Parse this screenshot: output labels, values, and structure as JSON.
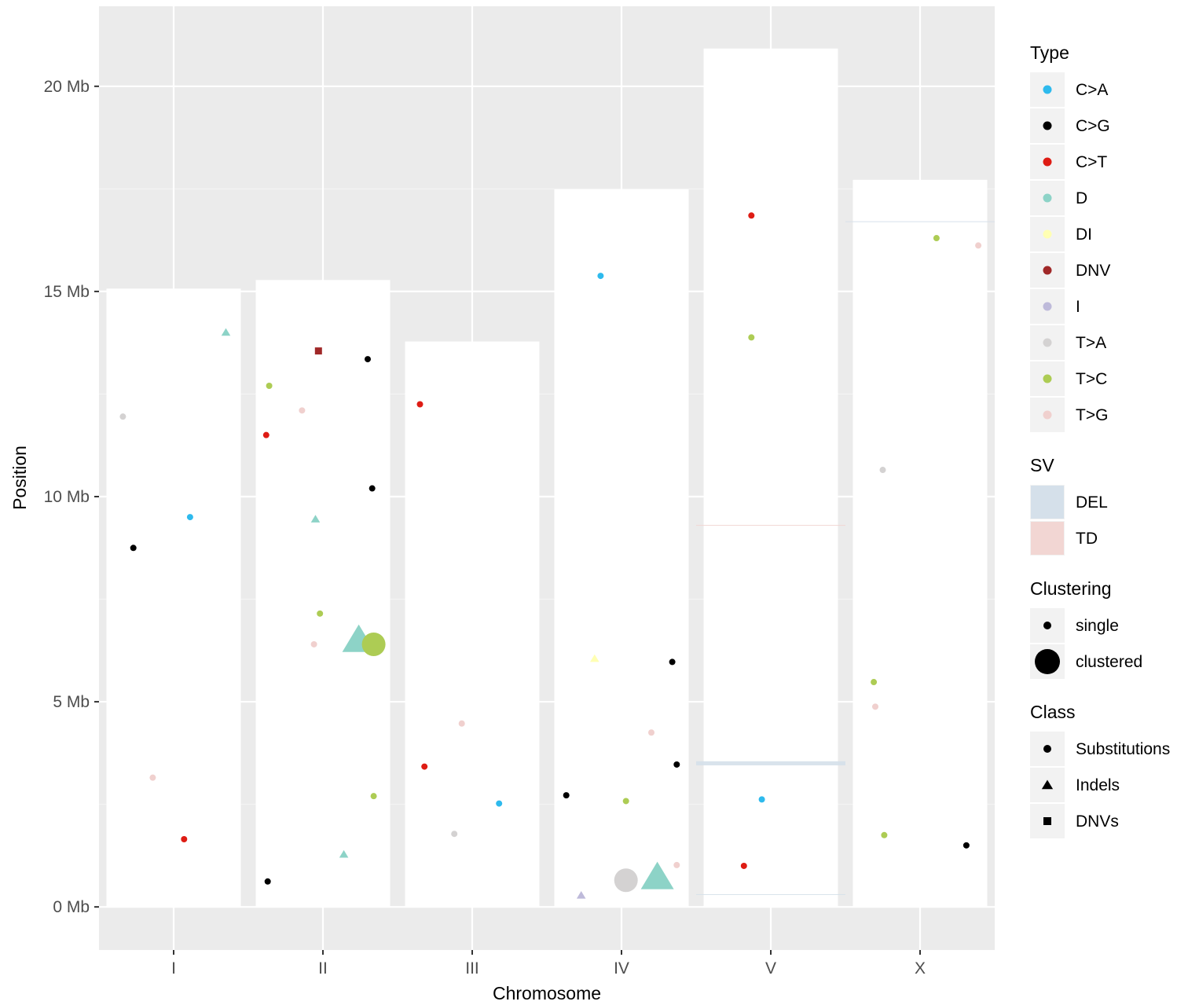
{
  "chart_data": {
    "type": "scatter",
    "xlabel": "Chromosome",
    "ylabel": "Position",
    "categories": [
      "I",
      "II",
      "III",
      "IV",
      "V",
      "X"
    ],
    "y_ticks": [
      {
        "value": 0,
        "label": "0 Mb"
      },
      {
        "value": 5,
        "label": "5 Mb"
      },
      {
        "value": 10,
        "label": "10 Mb"
      },
      {
        "value": 15,
        "label": "15 Mb"
      },
      {
        "value": 20,
        "label": "20 Mb"
      }
    ],
    "ylim": [
      -1.05,
      21.95
    ],
    "panel_background": "#ebebeb",
    "grid": true,
    "legend_placement": "right",
    "chromosome_lengths_mb": [
      {
        "chrom": "I",
        "length": 15.07
      },
      {
        "chrom": "II",
        "length": 15.28
      },
      {
        "chrom": "III",
        "length": 13.78
      },
      {
        "chrom": "IV",
        "length": 17.49
      },
      {
        "chrom": "V",
        "length": 20.92
      },
      {
        "chrom": "X",
        "length": 17.72
      }
    ],
    "sv_segments": [
      {
        "chrom": "V",
        "type": "DEL",
        "start_mb": 3.45,
        "end_mb": 3.55
      },
      {
        "chrom": "V",
        "type": "TD",
        "start_mb": 9.29,
        "end_mb": 9.31
      },
      {
        "chrom": "V",
        "type": "DEL",
        "start_mb": 0.3,
        "end_mb": 0.31
      },
      {
        "chrom": "X",
        "type": "DEL",
        "start_mb": 16.69,
        "end_mb": 16.71
      }
    ],
    "points": [
      {
        "chrom": "I",
        "offset": -0.34,
        "y": 11.95,
        "type": "T>A",
        "class": "Substitutions",
        "clustering": "single"
      },
      {
        "chrom": "I",
        "offset": -0.27,
        "y": 8.75,
        "type": "C>G",
        "class": "Substitutions",
        "clustering": "single"
      },
      {
        "chrom": "I",
        "offset": -0.14,
        "y": 3.15,
        "type": "T>G",
        "class": "Substitutions",
        "clustering": "single"
      },
      {
        "chrom": "I",
        "offset": 0.07,
        "y": 1.65,
        "type": "C>T",
        "class": "Substitutions",
        "clustering": "single"
      },
      {
        "chrom": "I",
        "offset": 0.11,
        "y": 9.5,
        "type": "C>A",
        "class": "Substitutions",
        "clustering": "single"
      },
      {
        "chrom": "I",
        "offset": 0.35,
        "y": 14.0,
        "type": "D",
        "class": "Indels",
        "clustering": "single"
      },
      {
        "chrom": "II",
        "offset": -0.38,
        "y": 11.5,
        "type": "C>T",
        "class": "Substitutions",
        "clustering": "single"
      },
      {
        "chrom": "II",
        "offset": -0.37,
        "y": 0.62,
        "type": "C>G",
        "class": "Substitutions",
        "clustering": "single"
      },
      {
        "chrom": "II",
        "offset": -0.36,
        "y": 12.7,
        "type": "T>C",
        "class": "Substitutions",
        "clustering": "single"
      },
      {
        "chrom": "II",
        "offset": -0.14,
        "y": 12.1,
        "type": "T>G",
        "class": "Substitutions",
        "clustering": "single"
      },
      {
        "chrom": "II",
        "offset": -0.06,
        "y": 6.4,
        "type": "T>G",
        "class": "Substitutions",
        "clustering": "single"
      },
      {
        "chrom": "II",
        "offset": -0.05,
        "y": 9.45,
        "type": "D",
        "class": "Indels",
        "clustering": "single"
      },
      {
        "chrom": "II",
        "offset": -0.03,
        "y": 13.55,
        "type": "DNV",
        "class": "DNVs",
        "clustering": "single"
      },
      {
        "chrom": "II",
        "offset": -0.02,
        "y": 7.15,
        "type": "T>C",
        "class": "Substitutions",
        "clustering": "single"
      },
      {
        "chrom": "II",
        "offset": 0.14,
        "y": 1.28,
        "type": "D",
        "class": "Indels",
        "clustering": "single"
      },
      {
        "chrom": "II",
        "offset": 0.24,
        "y": 6.5,
        "type": "D",
        "class": "Indels",
        "clustering": "clustered"
      },
      {
        "chrom": "II",
        "offset": 0.3,
        "y": 13.35,
        "type": "C>G",
        "class": "Substitutions",
        "clustering": "single"
      },
      {
        "chrom": "II",
        "offset": 0.33,
        "y": 10.2,
        "type": "C>G",
        "class": "Substitutions",
        "clustering": "single"
      },
      {
        "chrom": "II",
        "offset": 0.34,
        "y": 6.4,
        "type": "T>C",
        "class": "Substitutions",
        "clustering": "clustered"
      },
      {
        "chrom": "II",
        "offset": 0.34,
        "y": 2.7,
        "type": "T>C",
        "class": "Substitutions",
        "clustering": "single"
      },
      {
        "chrom": "III",
        "offset": -0.35,
        "y": 12.25,
        "type": "C>T",
        "class": "Substitutions",
        "clustering": "single"
      },
      {
        "chrom": "III",
        "offset": -0.32,
        "y": 3.42,
        "type": "C>T",
        "class": "Substitutions",
        "clustering": "single"
      },
      {
        "chrom": "III",
        "offset": -0.12,
        "y": 1.78,
        "type": "T>A",
        "class": "Substitutions",
        "clustering": "single"
      },
      {
        "chrom": "III",
        "offset": -0.07,
        "y": 4.47,
        "type": "T>G",
        "class": "Substitutions",
        "clustering": "single"
      },
      {
        "chrom": "III",
        "offset": 0.18,
        "y": 2.52,
        "type": "C>A",
        "class": "Substitutions",
        "clustering": "single"
      },
      {
        "chrom": "IV",
        "offset": -0.37,
        "y": 2.72,
        "type": "C>G",
        "class": "Substitutions",
        "clustering": "single"
      },
      {
        "chrom": "IV",
        "offset": -0.27,
        "y": 0.28,
        "type": "I",
        "class": "Indels",
        "clustering": "single"
      },
      {
        "chrom": "IV",
        "offset": -0.18,
        "y": 6.05,
        "type": "DI",
        "class": "Indels",
        "clustering": "single"
      },
      {
        "chrom": "IV",
        "offset": -0.14,
        "y": 15.38,
        "type": "C>A",
        "class": "Substitutions",
        "clustering": "single"
      },
      {
        "chrom": "IV",
        "offset": 0.03,
        "y": 0.65,
        "type": "T>A",
        "class": "Substitutions",
        "clustering": "clustered"
      },
      {
        "chrom": "IV",
        "offset": 0.03,
        "y": 2.58,
        "type": "T>C",
        "class": "Substitutions",
        "clustering": "single"
      },
      {
        "chrom": "IV",
        "offset": 0.2,
        "y": 4.25,
        "type": "T>G",
        "class": "Substitutions",
        "clustering": "single"
      },
      {
        "chrom": "IV",
        "offset": 0.24,
        "y": 0.72,
        "type": "D",
        "class": "Indels",
        "clustering": "clustered"
      },
      {
        "chrom": "IV",
        "offset": 0.34,
        "y": 5.97,
        "type": "C>G",
        "class": "Substitutions",
        "clustering": "single"
      },
      {
        "chrom": "IV",
        "offset": 0.37,
        "y": 1.02,
        "type": "T>G",
        "class": "Substitutions",
        "clustering": "single"
      },
      {
        "chrom": "IV",
        "offset": 0.37,
        "y": 3.47,
        "type": "C>G",
        "class": "Substitutions",
        "clustering": "single"
      },
      {
        "chrom": "V",
        "offset": -0.18,
        "y": 1.0,
        "type": "C>T",
        "class": "Substitutions",
        "clustering": "single"
      },
      {
        "chrom": "V",
        "offset": -0.13,
        "y": 16.85,
        "type": "C>T",
        "class": "Substitutions",
        "clustering": "single"
      },
      {
        "chrom": "V",
        "offset": -0.13,
        "y": 13.88,
        "type": "T>C",
        "class": "Substitutions",
        "clustering": "single"
      },
      {
        "chrom": "V",
        "offset": -0.06,
        "y": 2.62,
        "type": "C>A",
        "class": "Substitutions",
        "clustering": "single"
      },
      {
        "chrom": "X",
        "offset": -0.31,
        "y": 5.48,
        "type": "T>C",
        "class": "Substitutions",
        "clustering": "single"
      },
      {
        "chrom": "X",
        "offset": -0.3,
        "y": 4.88,
        "type": "T>G",
        "class": "Substitutions",
        "clustering": "single"
      },
      {
        "chrom": "X",
        "offset": -0.25,
        "y": 10.65,
        "type": "T>A",
        "class": "Substitutions",
        "clustering": "single"
      },
      {
        "chrom": "X",
        "offset": -0.24,
        "y": 1.75,
        "type": "T>C",
        "class": "Substitutions",
        "clustering": "single"
      },
      {
        "chrom": "X",
        "offset": 0.11,
        "y": 16.3,
        "type": "T>C",
        "class": "Substitutions",
        "clustering": "single"
      },
      {
        "chrom": "X",
        "offset": 0.31,
        "y": 1.5,
        "type": "C>G",
        "class": "Substitutions",
        "clustering": "single"
      },
      {
        "chrom": "X",
        "offset": 0.39,
        "y": 16.12,
        "type": "T>G",
        "class": "Substitutions",
        "clustering": "single"
      }
    ],
    "legends": [
      {
        "title": "Type",
        "kind": "color",
        "entries": [
          {
            "label": "C>A",
            "color": "#2EBAED"
          },
          {
            "label": "C>G",
            "color": "#000000"
          },
          {
            "label": "C>T",
            "color": "#DE1C14"
          },
          {
            "label": "D",
            "color": "#8DD3C7"
          },
          {
            "label": "DI",
            "color": "#FFFFB3"
          },
          {
            "label": "DNV",
            "color": "#A02828"
          },
          {
            "label": "I",
            "color": "#BEBADA"
          },
          {
            "label": "T>A",
            "color": "#D4D2D2"
          },
          {
            "label": "T>C",
            "color": "#ADCC54"
          },
          {
            "label": "T>G",
            "color": "#F0D0CE"
          }
        ]
      },
      {
        "title": "SV",
        "kind": "fill",
        "entries": [
          {
            "label": "DEL",
            "color": "#D5E0EA"
          },
          {
            "label": "TD",
            "color": "#F2D6D3"
          }
        ]
      },
      {
        "title": "Clustering",
        "kind": "size",
        "entries": [
          {
            "label": "single",
            "size": "small"
          },
          {
            "label": "clustered",
            "size": "large"
          }
        ]
      },
      {
        "title": "Class",
        "kind": "shape",
        "entries": [
          {
            "label": "Substitutions",
            "shape": "circle"
          },
          {
            "label": "Indels",
            "shape": "triangle"
          },
          {
            "label": "DNVs",
            "shape": "square"
          }
        ]
      }
    ]
  }
}
